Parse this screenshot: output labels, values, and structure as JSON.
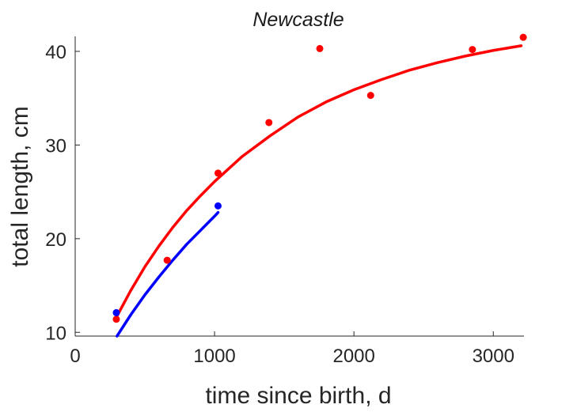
{
  "chart_data": {
    "type": "scatter",
    "title": "Newcastle",
    "xlabel": "time since birth, d",
    "ylabel": "total length, cm",
    "xlim": [
      0,
      3220
    ],
    "ylim": [
      9.6,
      41.6
    ],
    "xticks": [
      0,
      1000,
      2000,
      3000
    ],
    "yticks": [
      10,
      20,
      30,
      40
    ],
    "xtick_labels": [
      "0",
      "1000",
      "2000",
      "3000"
    ],
    "ytick_labels": [
      "10",
      "20",
      "30",
      "40"
    ],
    "grid": false,
    "legend": "none",
    "series": [
      {
        "color": "#ff0000",
        "points": {
          "x": [
            295,
            660,
            1025,
            1390,
            1755,
            2120,
            2850,
            3215
          ],
          "y": [
            11.4,
            17.7,
            27.0,
            32.4,
            40.3,
            35.3,
            40.2,
            41.5
          ]
        },
        "fit_curve": {
          "x": [
            295,
            400,
            500,
            600,
            700,
            800,
            900,
            1000,
            1200,
            1400,
            1600,
            1800,
            2000,
            2200,
            2400,
            2600,
            2800,
            3000,
            3200
          ],
          "y": [
            11.6,
            14.5,
            17.0,
            19.2,
            21.2,
            23.0,
            24.6,
            26.1,
            28.8,
            31.0,
            33.0,
            34.6,
            35.9,
            37.0,
            38.0,
            38.8,
            39.5,
            40.1,
            40.6
          ]
        }
      },
      {
        "color": "#0000ff",
        "points": {
          "x": [
            295,
            1025
          ],
          "y": [
            12.1,
            23.5
          ]
        },
        "fit_curve": {
          "x": [
            300,
            400,
            500,
            600,
            700,
            800,
            900,
            1000,
            1025
          ],
          "y": [
            9.6,
            11.9,
            14.0,
            15.9,
            17.7,
            19.4,
            20.9,
            22.4,
            22.8
          ]
        }
      }
    ]
  }
}
